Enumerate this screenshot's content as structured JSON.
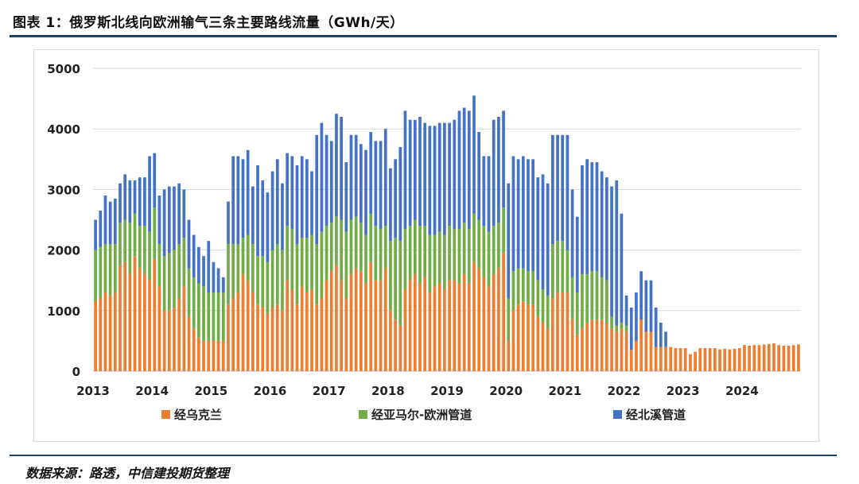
{
  "header": {
    "title": "图表 1：俄罗斯北线向欧洲输气三条主要路线流量（GWh/天）"
  },
  "footer": {
    "source": "数据来源：路透，中信建投期货整理"
  },
  "colors": {
    "ukraine": "#ed7d31",
    "yamal": "#70ad47",
    "nordstream": "#4472c4",
    "grid": "#d9d9d9"
  },
  "chart_data": {
    "type": "bar",
    "stacked": true,
    "title": "",
    "xlabel": "",
    "ylabel": "",
    "ylim": [
      0,
      5000
    ],
    "yticks": [
      0,
      1000,
      2000,
      3000,
      4000,
      5000
    ],
    "xticks": [
      "2013",
      "2014",
      "2015",
      "2016",
      "2017",
      "2018",
      "2019",
      "2020",
      "2021",
      "2022",
      "2023",
      "2024"
    ],
    "grid": true,
    "legend_position": "bottom",
    "categories": [
      "2013-01",
      "2013-02",
      "2013-03",
      "2013-04",
      "2013-05",
      "2013-06",
      "2013-07",
      "2013-08",
      "2013-09",
      "2013-10",
      "2013-11",
      "2013-12",
      "2014-01",
      "2014-02",
      "2014-03",
      "2014-04",
      "2014-05",
      "2014-06",
      "2014-07",
      "2014-08",
      "2014-09",
      "2014-10",
      "2014-11",
      "2014-12",
      "2015-01",
      "2015-02",
      "2015-03",
      "2015-04",
      "2015-05",
      "2015-06",
      "2015-07",
      "2015-08",
      "2015-09",
      "2015-10",
      "2015-11",
      "2015-12",
      "2016-01",
      "2016-02",
      "2016-03",
      "2016-04",
      "2016-05",
      "2016-06",
      "2016-07",
      "2016-08",
      "2016-09",
      "2016-10",
      "2016-11",
      "2016-12",
      "2017-01",
      "2017-02",
      "2017-03",
      "2017-04",
      "2017-05",
      "2017-06",
      "2017-07",
      "2017-08",
      "2017-09",
      "2017-10",
      "2017-11",
      "2017-12",
      "2018-01",
      "2018-02",
      "2018-03",
      "2018-04",
      "2018-05",
      "2018-06",
      "2018-07",
      "2018-08",
      "2018-09",
      "2018-10",
      "2018-11",
      "2018-12",
      "2019-01",
      "2019-02",
      "2019-03",
      "2019-04",
      "2019-05",
      "2019-06",
      "2019-07",
      "2019-08",
      "2019-09",
      "2019-10",
      "2019-11",
      "2019-12",
      "2020-01",
      "2020-02",
      "2020-03",
      "2020-04",
      "2020-05",
      "2020-06",
      "2020-07",
      "2020-08",
      "2020-09",
      "2020-10",
      "2020-11",
      "2020-12",
      "2021-01",
      "2021-02",
      "2021-03",
      "2021-04",
      "2021-05",
      "2021-06",
      "2021-07",
      "2021-08",
      "2021-09",
      "2021-10",
      "2021-11",
      "2021-12",
      "2022-01",
      "2022-02",
      "2022-03",
      "2022-04",
      "2022-05",
      "2022-06",
      "2022-07",
      "2022-08",
      "2022-09",
      "2022-10",
      "2022-11",
      "2022-12",
      "2023-01",
      "2023-02",
      "2023-03",
      "2023-04",
      "2023-05",
      "2023-06",
      "2023-07",
      "2023-08",
      "2023-09",
      "2023-10",
      "2023-11",
      "2023-12",
      "2024-01",
      "2024-02",
      "2024-03",
      "2024-04",
      "2024-05",
      "2024-06",
      "2024-07",
      "2024-08",
      "2024-09",
      "2024-10",
      "2024-11",
      "2024-12"
    ],
    "series": [
      {
        "name": "经乌克兰",
        "color": "#ed7d31",
        "values": [
          1150,
          1200,
          1300,
          1250,
          1300,
          1750,
          1800,
          1600,
          1900,
          1700,
          1600,
          1500,
          1850,
          1400,
          1000,
          1000,
          1050,
          1200,
          1400,
          900,
          700,
          550,
          500,
          500,
          500,
          500,
          500,
          1100,
          1200,
          1300,
          1600,
          1500,
          1300,
          1100,
          1050,
          950,
          1050,
          1100,
          1000,
          1500,
          1350,
          1100,
          1400,
          1300,
          1350,
          1100,
          1200,
          1500,
          1650,
          1750,
          1500,
          1200,
          1600,
          1700,
          1650,
          1450,
          1800,
          1500,
          1500,
          1700,
          1000,
          850,
          750,
          1350,
          1500,
          1600,
          1450,
          1550,
          1300,
          1400,
          1450,
          1350,
          1500,
          1500,
          1450,
          1600,
          1450,
          1800,
          1700,
          1550,
          1400,
          1600,
          1700,
          1950,
          500,
          1000,
          1100,
          1150,
          1100,
          1100,
          900,
          800,
          700,
          1200,
          1300,
          1300,
          1300,
          850,
          600,
          700,
          800,
          850,
          850,
          850,
          800,
          700,
          650,
          700,
          650,
          350,
          500,
          850,
          650,
          650,
          400,
          400,
          400,
          400,
          380,
          380,
          380,
          280,
          320,
          380,
          380,
          380,
          380,
          360,
          370,
          360,
          370,
          380,
          430,
          420,
          430,
          430,
          440,
          450,
          460,
          430,
          420,
          420,
          430,
          440
        ]
      },
      {
        "name": "经亚马尔-欧洲管道",
        "color": "#70ad47",
        "values": [
          850,
          850,
          800,
          850,
          800,
          700,
          700,
          850,
          700,
          700,
          800,
          800,
          850,
          700,
          900,
          950,
          950,
          900,
          800,
          800,
          850,
          900,
          900,
          800,
          800,
          800,
          800,
          1000,
          900,
          800,
          600,
          750,
          800,
          800,
          850,
          850,
          950,
          1000,
          1000,
          900,
          1000,
          1000,
          800,
          900,
          900,
          1000,
          1100,
          900,
          800,
          800,
          1000,
          1100,
          900,
          850,
          800,
          800,
          800,
          900,
          850,
          700,
          1150,
          1350,
          1400,
          1000,
          900,
          900,
          950,
          850,
          950,
          850,
          850,
          900,
          900,
          850,
          900,
          850,
          900,
          800,
          800,
          850,
          900,
          800,
          750,
          750,
          700,
          650,
          600,
          550,
          550,
          550,
          600,
          550,
          550,
          900,
          850,
          850,
          700,
          700,
          700,
          900,
          800,
          800,
          800,
          700,
          700,
          200,
          100,
          100,
          100,
          0,
          0,
          0,
          0,
          0,
          0,
          0,
          0,
          0,
          0,
          0,
          0,
          0,
          0,
          0,
          0,
          0,
          0,
          0,
          0,
          0,
          0,
          0,
          0,
          0,
          0,
          0,
          0,
          0,
          0,
          0,
          0,
          0,
          0,
          0
        ]
      },
      {
        "name": "经北溪管道",
        "color": "#4472c4",
        "values": [
          500,
          600,
          800,
          700,
          750,
          650,
          750,
          700,
          550,
          800,
          800,
          1250,
          900,
          800,
          1100,
          1100,
          1050,
          1000,
          800,
          800,
          700,
          600,
          500,
          850,
          500,
          400,
          250,
          700,
          1450,
          1450,
          1300,
          1400,
          950,
          1500,
          1250,
          1150,
          1300,
          1400,
          1100,
          1200,
          1200,
          1300,
          1350,
          1300,
          1050,
          1800,
          1800,
          1500,
          1350,
          1700,
          1700,
          1150,
          1400,
          1350,
          1300,
          1400,
          1350,
          1400,
          1450,
          1600,
          1200,
          1300,
          1550,
          1950,
          1750,
          1650,
          1800,
          1700,
          1800,
          1800,
          1800,
          1850,
          1700,
          1800,
          1950,
          1900,
          1950,
          1950,
          1450,
          1150,
          1250,
          1750,
          1750,
          1600,
          1900,
          1900,
          1800,
          1850,
          1850,
          1850,
          1700,
          1900,
          1850,
          1800,
          1750,
          1750,
          1900,
          1450,
          1250,
          1800,
          1900,
          1800,
          1800,
          1750,
          1700,
          2150,
          2400,
          1800,
          500,
          700,
          800,
          800,
          850,
          850,
          650,
          400,
          250,
          0,
          0,
          0,
          0,
          0,
          0,
          0,
          0,
          0,
          0,
          0,
          0,
          0,
          0,
          0,
          0,
          0,
          0,
          0,
          0,
          0,
          0,
          0,
          0,
          0,
          0,
          0
        ]
      }
    ]
  }
}
